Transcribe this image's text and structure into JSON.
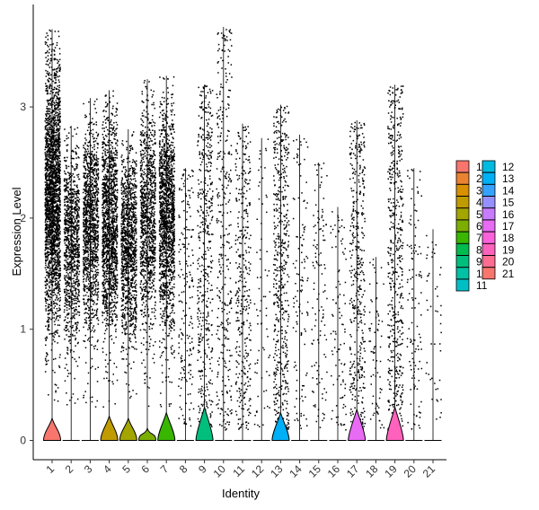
{
  "chart_data": {
    "type": "violin",
    "xlabel": "Identity",
    "ylabel": "Expression Level",
    "ylim": [
      -0.2,
      3.9
    ],
    "yticks": [
      0,
      1,
      2,
      3
    ],
    "grid": false,
    "legend_position": "right",
    "points_overlay": true,
    "clusters": [
      {
        "name": "1",
        "color": "#F8766D",
        "max": 3.7,
        "point_density": 1.0,
        "violin_peak": 0.2
      },
      {
        "name": "2",
        "color": "#EA8331",
        "max": 2.83,
        "point_density": 0.42,
        "violin_peak": 0.0
      },
      {
        "name": "3",
        "color": "#D89000",
        "max": 3.08,
        "point_density": 0.5,
        "violin_peak": 0.0
      },
      {
        "name": "4",
        "color": "#C09B00",
        "max": 3.15,
        "point_density": 0.6,
        "violin_peak": 0.22
      },
      {
        "name": "5",
        "color": "#A3A500",
        "max": 2.8,
        "point_density": 0.48,
        "violin_peak": 0.2
      },
      {
        "name": "6",
        "color": "#7CAE00",
        "max": 3.25,
        "point_density": 0.45,
        "violin_peak": 0.11
      },
      {
        "name": "7",
        "color": "#39B600",
        "max": 3.28,
        "point_density": 0.62,
        "violin_peak": 0.25
      },
      {
        "name": "8",
        "color": "#00BB4E",
        "max": 2.45,
        "point_density": 0.08,
        "violin_peak": 0.0
      },
      {
        "name": "9",
        "color": "#00BF7D",
        "max": 3.2,
        "point_density": 0.2,
        "violin_peak": 0.3
      },
      {
        "name": "10",
        "color": "#00C1A3",
        "max": 3.72,
        "point_density": 0.14,
        "violin_peak": 0.0
      },
      {
        "name": "11",
        "color": "#00BFC4",
        "max": 2.85,
        "point_density": 0.15,
        "violin_peak": 0.0
      },
      {
        "name": "12",
        "color": "#00BAE0",
        "max": 2.72,
        "point_density": 0.03,
        "violin_peak": 0.0
      },
      {
        "name": "13",
        "color": "#00B0F6",
        "max": 3.02,
        "point_density": 0.22,
        "violin_peak": 0.25
      },
      {
        "name": "14",
        "color": "#35A2FF",
        "max": 2.75,
        "point_density": 0.05,
        "violin_peak": 0.0
      },
      {
        "name": "15",
        "color": "#9590FF",
        "max": 2.5,
        "point_density": 0.05,
        "violin_peak": 0.0
      },
      {
        "name": "16",
        "color": "#C77CFF",
        "max": 2.1,
        "point_density": 0.04,
        "violin_peak": 0.0
      },
      {
        "name": "17",
        "color": "#E76BF3",
        "max": 2.88,
        "point_density": 0.18,
        "violin_peak": 0.28
      },
      {
        "name": "18",
        "color": "#FA62DB",
        "max": 1.65,
        "point_density": 0.03,
        "violin_peak": 0.0
      },
      {
        "name": "19",
        "color": "#FF62BC",
        "max": 3.2,
        "point_density": 0.22,
        "violin_peak": 0.3
      },
      {
        "name": "20",
        "color": "#FF6C91",
        "max": 2.45,
        "point_density": 0.05,
        "violin_peak": 0.0
      },
      {
        "name": "21",
        "color": "#F8766D",
        "max": 1.9,
        "point_density": 0.02,
        "violin_peak": 0.0
      }
    ]
  }
}
